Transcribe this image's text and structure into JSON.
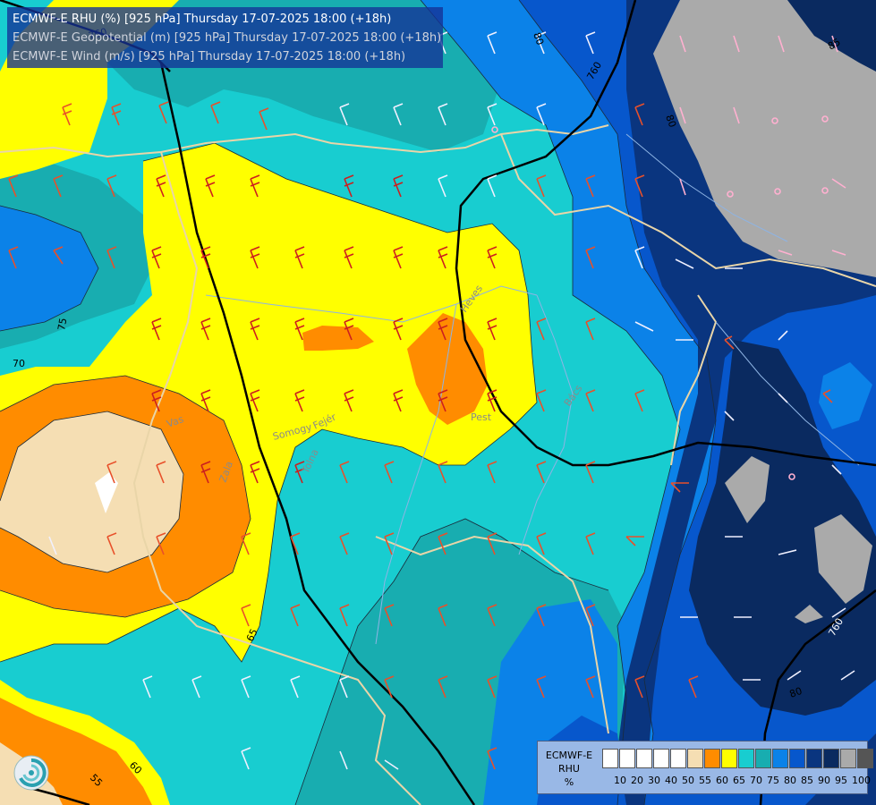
{
  "title": {
    "line1": "ECMWF-E RHU (%) [925 hPa] Thursday 17-07-2025 18:00 (+18h)",
    "line2": "ECMWF-E Geopotential (m) [925 hPa] Thursday 17-07-2025 18:00 (+18h)",
    "line3": "ECMWF-E Wind (m/s) [925 hPa] Thursday 17-07-2025 18:00 (+18h)"
  },
  "legend": {
    "model": "ECMWF-E",
    "variable": "RHU",
    "unit": "%",
    "classes": [
      {
        "color": "#ffffff"
      },
      {
        "color": "#ffffff"
      },
      {
        "color": "#ffffff"
      },
      {
        "color": "#ffffff"
      },
      {
        "color": "#ffffff"
      },
      {
        "color": "#f5deb3"
      },
      {
        "color": "#ff8c00"
      },
      {
        "color": "#ffff00"
      },
      {
        "color": "#18cdd0"
      },
      {
        "color": "#18adb0"
      },
      {
        "color": "#0b82e8"
      },
      {
        "color": "#0757cc"
      },
      {
        "color": "#0a357f"
      },
      {
        "color": "#0a2a60"
      },
      {
        "color": "#aaaaaa"
      },
      {
        "color": "#555555"
      }
    ],
    "ticks": [
      "10",
      "20",
      "30",
      "40",
      "50",
      "55",
      "60",
      "65",
      "70",
      "75",
      "80",
      "85",
      "90",
      "95",
      "100"
    ]
  },
  "contour_labels": {
    "geopotential": [
      "760",
      "760",
      "760",
      "760"
    ],
    "rhu": [
      "80",
      "85",
      "75",
      "70",
      "65",
      "60",
      "55",
      "80",
      "80"
    ]
  },
  "place_names": [
    "Pest",
    "Somogy",
    "Fejér",
    "Tolna",
    "Vas",
    "Zala",
    "Heves",
    "Bács"
  ],
  "colors": {
    "cyan": "#18cdd0",
    "teal": "#18adb0",
    "yellow": "#ffff00",
    "orange": "#ff8c00",
    "wheat": "#f5deb3",
    "blue": "#0b82e8",
    "royal": "#0757cc",
    "navy": "#0a357f",
    "darknavy": "#0a2a60",
    "gray": "#aaaaaa",
    "geopotential_line": "#000000",
    "border_line": "#e9d5a8",
    "river_line": "#8eb4e4"
  }
}
